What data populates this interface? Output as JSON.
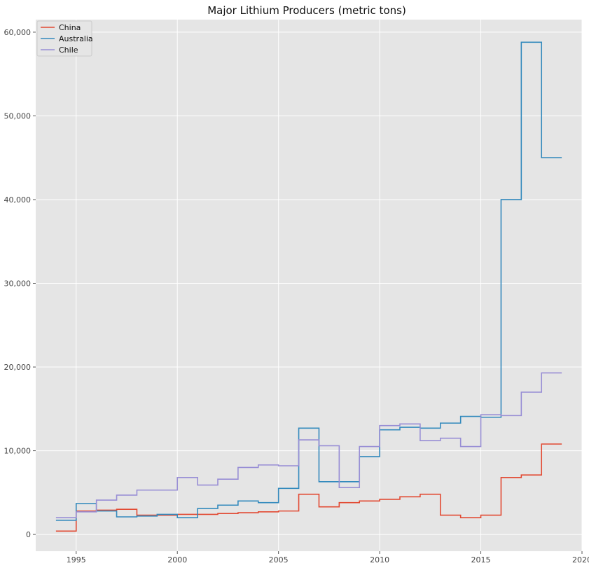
{
  "chart_data": {
    "type": "line",
    "drawstyle": "steps-post",
    "title": "Major Lithium Producers (metric tons)",
    "xlabel": "",
    "ylabel": "",
    "xlim": [
      1993,
      2020
    ],
    "ylim": [
      -2000,
      61500
    ],
    "x_ticks": [
      1995,
      2000,
      2005,
      2010,
      2015,
      2020
    ],
    "x_tick_labels": [
      "1995",
      "2000",
      "2005",
      "2010",
      "2015",
      "2020"
    ],
    "y_ticks": [
      0,
      10000,
      20000,
      30000,
      40000,
      50000,
      60000
    ],
    "y_tick_labels": [
      "0",
      "10,000",
      "20,000",
      "30,000",
      "40,000",
      "50,000",
      "60,000"
    ],
    "grid": true,
    "legend_position": "top-left",
    "x": [
      1994,
      1995,
      1996,
      1997,
      1998,
      1999,
      2000,
      2001,
      2002,
      2003,
      2004,
      2005,
      2006,
      2007,
      2008,
      2009,
      2010,
      2011,
      2012,
      2013,
      2014,
      2015,
      2016,
      2017,
      2018,
      2019
    ],
    "series": [
      {
        "name": "China",
        "color": "#E24A33",
        "values": [
          400,
          2800,
          2900,
          3000,
          2300,
          2300,
          2400,
          2400,
          2500,
          2600,
          2700,
          2800,
          4800,
          3300,
          3800,
          4000,
          4200,
          4500,
          4800,
          2300,
          2000,
          2300,
          6800,
          7100,
          10800,
          10800
        ]
      },
      {
        "name": "Australia",
        "color": "#348ABD",
        "values": [
          1700,
          3700,
          2800,
          2100,
          2200,
          2400,
          2000,
          3100,
          3500,
          4000,
          3800,
          5500,
          12700,
          6300,
          6300,
          9300,
          12500,
          12800,
          12700,
          13300,
          14100,
          14000,
          40000,
          58800,
          45000,
          45000
        ]
      },
      {
        "name": "Chile",
        "color": "#988ED5",
        "values": [
          2000,
          2700,
          4100,
          4700,
          5300,
          5300,
          6800,
          5900,
          6600,
          8000,
          8300,
          8200,
          11300,
          10600,
          5600,
          10500,
          13000,
          13200,
          11200,
          11500,
          10500,
          14300,
          14200,
          17000,
          19300,
          19300
        ]
      }
    ]
  }
}
